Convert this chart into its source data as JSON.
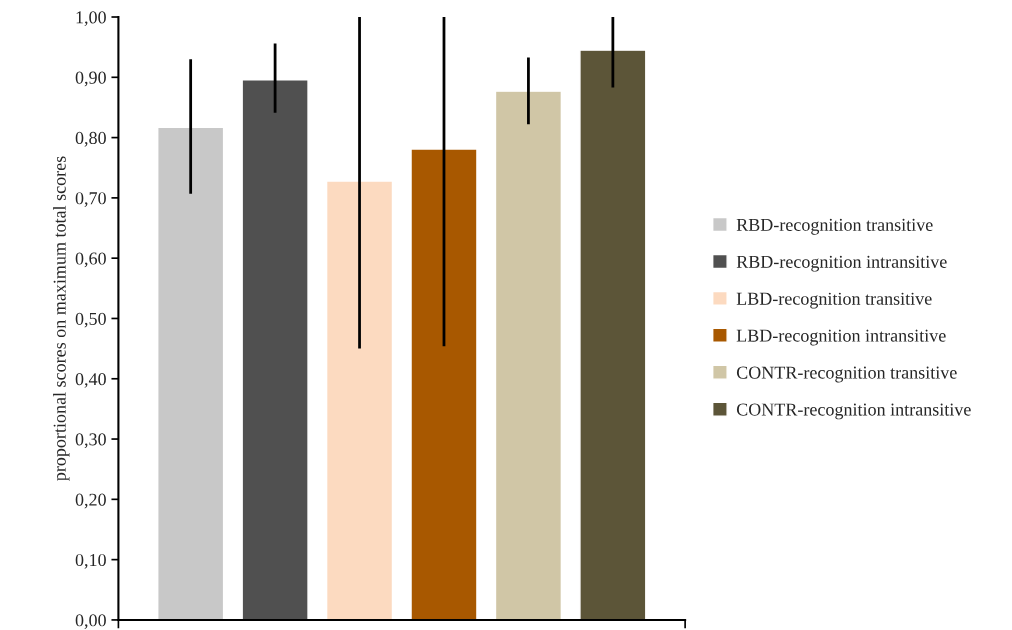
{
  "chart_data": {
    "type": "bar",
    "ylabel": "proportional scores on maximum total scores",
    "categories": [
      null
    ],
    "series": [
      {
        "name": "RBD-recognition transitive",
        "color": "#c8c8c8",
        "values": [
          0.817
        ],
        "errors": [
          [
            0.707,
            0.93
          ]
        ]
      },
      {
        "name": "RBD-recognition intransitive",
        "color": "#505050",
        "values": [
          0.896
        ],
        "errors": [
          [
            0.841,
            0.956
          ]
        ]
      },
      {
        "name": "LBD-recognition transitive",
        "color": "#fcdac0",
        "values": [
          0.728
        ],
        "errors": [
          [
            0.45,
            1.0
          ]
        ]
      },
      {
        "name": "LBD-recognition intransitive",
        "color": "#a85800",
        "values": [
          0.781
        ],
        "errors": [
          [
            0.454,
            1.0
          ]
        ]
      },
      {
        "name": "CONTR-recognition transitive",
        "color": "#d0c6a6",
        "values": [
          0.877
        ],
        "errors": [
          [
            0.822,
            0.933
          ]
        ]
      },
      {
        "name": "CONTR-recognition intransitive",
        "color": "#5c5538",
        "values": [
          0.945
        ],
        "errors": [
          [
            0.883,
            1.0
          ]
        ]
      }
    ],
    "ylim": [
      0,
      1.0
    ],
    "yticks": [
      {
        "value": 0,
        "label": "0,00"
      },
      {
        "value": 0.1,
        "label": "0,10"
      },
      {
        "value": 0.2,
        "label": "0,20"
      },
      {
        "value": 0.3,
        "label": "0,30"
      },
      {
        "value": 0.4,
        "label": "0,40"
      },
      {
        "value": 0.5,
        "label": "0,50"
      },
      {
        "value": 0.6,
        "label": "0,60"
      },
      {
        "value": 0.7,
        "label": "0,70"
      },
      {
        "value": 0.8,
        "label": "0,80"
      },
      {
        "value": 0.9,
        "label": "0,90"
      },
      {
        "value": 1.0,
        "label": "1,00"
      }
    ],
    "grid": false,
    "legend": "right"
  }
}
